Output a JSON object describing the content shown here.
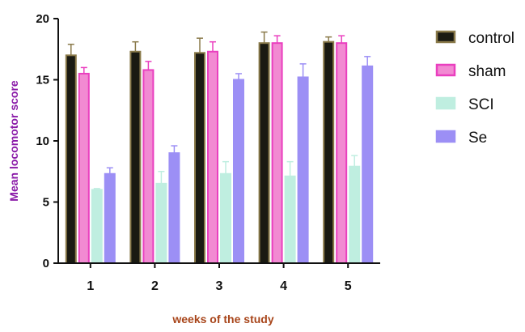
{
  "chart_data": {
    "type": "bar",
    "xlabel": "weeks of the study",
    "ylabel": "Mean locomotor score",
    "ylim": [
      0,
      20
    ],
    "yticks": [
      0,
      5,
      10,
      15,
      20
    ],
    "categories": [
      "1",
      "2",
      "3",
      "4",
      "5"
    ],
    "grid": false,
    "legend_position": "right",
    "series": [
      {
        "name": "control",
        "fill": "#1a1a12",
        "stroke": "#8a7a4a",
        "values": [
          17.0,
          17.3,
          17.2,
          18.0,
          18.1
        ],
        "errors": [
          0.9,
          0.8,
          1.2,
          0.9,
          0.4
        ]
      },
      {
        "name": "sham",
        "fill": "#f28ad2",
        "stroke": "#ea3fbf",
        "values": [
          15.5,
          15.8,
          17.3,
          18.0,
          18.0
        ],
        "errors": [
          0.5,
          0.7,
          0.8,
          0.6,
          0.6
        ]
      },
      {
        "name": "SCI",
        "fill": "#bfeee0",
        "stroke": "#bfeee0",
        "values": [
          6.0,
          6.5,
          7.3,
          7.1,
          7.9
        ],
        "errors": [
          0.1,
          1.0,
          1.0,
          1.2,
          0.9
        ]
      },
      {
        "name": "Se",
        "fill": "#9c8ff5",
        "stroke": "#9c8ff5",
        "values": [
          7.3,
          9.0,
          15.0,
          15.2,
          16.1
        ],
        "errors": [
          0.5,
          0.6,
          0.5,
          1.1,
          0.8
        ]
      }
    ]
  },
  "colors": {
    "axis": "#111111",
    "ylabel": "#8a1aa8",
    "xlabel": "#a8451a"
  }
}
